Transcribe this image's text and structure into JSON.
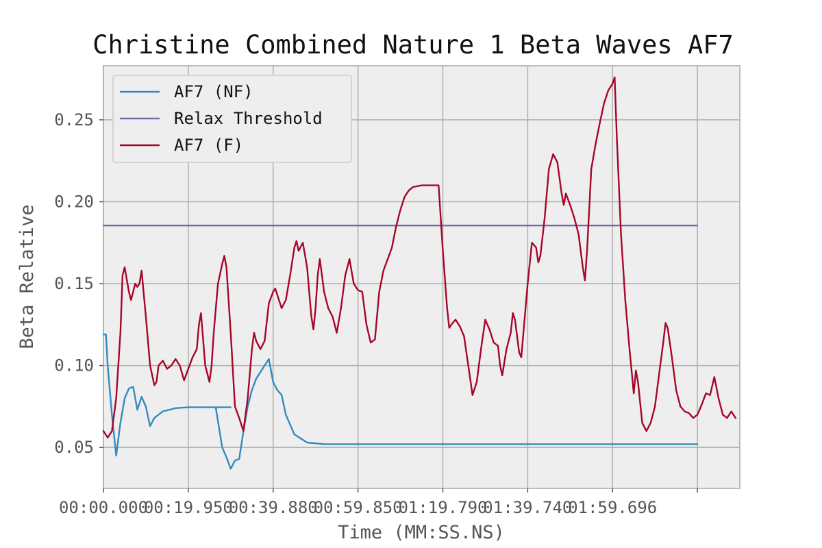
{
  "chart_data": {
    "type": "line",
    "title": "Christine Combined Nature 1 Beta Waves AF7",
    "xlabel": "Time (MM:SS.NS)",
    "ylabel": "Beta Relative",
    "xlim": [
      0,
      150
    ],
    "ylim": [
      0.025,
      0.283
    ],
    "x_ticks": [
      0,
      20,
      40,
      60,
      80,
      100,
      120
    ],
    "x_tick_labels": [
      "00:00.000",
      "00:19.950",
      "00:39.880",
      "00:59.850",
      "01:19.790",
      "01:39.740",
      "01:59.696"
    ],
    "y_ticks": [
      0.05,
      0.1,
      0.15,
      0.2,
      0.25
    ],
    "y_tick_labels": [
      "0.05",
      "0.10",
      "0.15",
      "0.20",
      "0.25"
    ],
    "grid": true,
    "legend_position": "top-left",
    "series": [
      {
        "name": "AF7 (NF)",
        "color": "#348ABD",
        "points": [
          [
            0,
            0.119
          ],
          [
            0.6,
            0.119
          ],
          [
            1,
            0.1
          ],
          [
            2,
            0.07
          ],
          [
            3,
            0.045
          ],
          [
            4,
            0.065
          ],
          [
            5,
            0.08
          ],
          [
            6,
            0.086
          ],
          [
            7,
            0.087
          ],
          [
            8,
            0.073
          ],
          [
            9,
            0.081
          ],
          [
            10,
            0.075
          ],
          [
            11,
            0.063
          ],
          [
            12,
            0.068
          ],
          [
            14,
            0.072
          ],
          [
            17,
            0.074
          ],
          [
            20,
            0.0745
          ],
          [
            30,
            0.0745
          ],
          [
            27,
            0.0745
          ],
          [
            26.5,
            0.074
          ],
          [
            28,
            0.05
          ],
          [
            29,
            0.044
          ],
          [
            30,
            0.037
          ],
          [
            31,
            0.042
          ],
          [
            32,
            0.043
          ],
          [
            33,
            0.06
          ],
          [
            34,
            0.075
          ],
          [
            35,
            0.085
          ],
          [
            36,
            0.092
          ],
          [
            37,
            0.096
          ],
          [
            38,
            0.1
          ],
          [
            39,
            0.104
          ],
          [
            40,
            0.09
          ],
          [
            41,
            0.085
          ],
          [
            42,
            0.082
          ],
          [
            43,
            0.07
          ],
          [
            45,
            0.058
          ],
          [
            48,
            0.053
          ],
          [
            52,
            0.052
          ],
          [
            140,
            0.052
          ]
        ]
      },
      {
        "name": "Relax Threshold",
        "color": "#7A68A6",
        "points": [
          [
            0,
            0.1855
          ],
          [
            140,
            0.1855
          ]
        ]
      },
      {
        "name": "AF7 (F)",
        "color": "#A60628",
        "points": [
          [
            0,
            0.06
          ],
          [
            1,
            0.056
          ],
          [
            2,
            0.06
          ],
          [
            3,
            0.08
          ],
          [
            4,
            0.12
          ],
          [
            4.5,
            0.155
          ],
          [
            5,
            0.16
          ],
          [
            6,
            0.145
          ],
          [
            6.5,
            0.14
          ],
          [
            7,
            0.145
          ],
          [
            7.5,
            0.15
          ],
          [
            8,
            0.148
          ],
          [
            8.5,
            0.15
          ],
          [
            9,
            0.158
          ],
          [
            10,
            0.13
          ],
          [
            11,
            0.1
          ],
          [
            12,
            0.088
          ],
          [
            12.5,
            0.09
          ],
          [
            13,
            0.1
          ],
          [
            14,
            0.103
          ],
          [
            15,
            0.098
          ],
          [
            16,
            0.1
          ],
          [
            17,
            0.104
          ],
          [
            18,
            0.1
          ],
          [
            19,
            0.091
          ],
          [
            20,
            0.098
          ],
          [
            21,
            0.105
          ],
          [
            22,
            0.11
          ],
          [
            22.5,
            0.125
          ],
          [
            23,
            0.132
          ],
          [
            24,
            0.1
          ],
          [
            25,
            0.09
          ],
          [
            25.5,
            0.1
          ],
          [
            26,
            0.12
          ],
          [
            27,
            0.15
          ],
          [
            28,
            0.162
          ],
          [
            28.5,
            0.167
          ],
          [
            29,
            0.16
          ],
          [
            30,
            0.12
          ],
          [
            31,
            0.075
          ],
          [
            32,
            0.068
          ],
          [
            33,
            0.06
          ],
          [
            34,
            0.08
          ],
          [
            35,
            0.11
          ],
          [
            35.5,
            0.12
          ],
          [
            36,
            0.115
          ],
          [
            37,
            0.11
          ],
          [
            38,
            0.115
          ],
          [
            39,
            0.138
          ],
          [
            40,
            0.145
          ],
          [
            40.5,
            0.147
          ],
          [
            41,
            0.143
          ],
          [
            42,
            0.135
          ],
          [
            43,
            0.14
          ],
          [
            44,
            0.155
          ],
          [
            45,
            0.172
          ],
          [
            45.5,
            0.176
          ],
          [
            46,
            0.17
          ],
          [
            47,
            0.175
          ],
          [
            48,
            0.16
          ],
          [
            49,
            0.13
          ],
          [
            49.5,
            0.122
          ],
          [
            50,
            0.135
          ],
          [
            50.5,
            0.155
          ],
          [
            51,
            0.165
          ],
          [
            52,
            0.145
          ],
          [
            53,
            0.135
          ],
          [
            54,
            0.13
          ],
          [
            55,
            0.12
          ],
          [
            56,
            0.135
          ],
          [
            57,
            0.155
          ],
          [
            57.5,
            0.16
          ],
          [
            58,
            0.165
          ],
          [
            59,
            0.15
          ],
          [
            60,
            0.146
          ],
          [
            61,
            0.145
          ],
          [
            62,
            0.125
          ],
          [
            63,
            0.114
          ],
          [
            64,
            0.116
          ],
          [
            65,
            0.145
          ],
          [
            66,
            0.158
          ],
          [
            67,
            0.165
          ],
          [
            68,
            0.172
          ],
          [
            69,
            0.185
          ],
          [
            70,
            0.195
          ],
          [
            71,
            0.203
          ],
          [
            72,
            0.207
          ],
          [
            73,
            0.209
          ],
          [
            75,
            0.21
          ],
          [
            79,
            0.21
          ],
          [
            80,
            0.17
          ],
          [
            81,
            0.135
          ],
          [
            81.5,
            0.123
          ],
          [
            82,
            0.125
          ],
          [
            83,
            0.128
          ],
          [
            84,
            0.124
          ],
          [
            85,
            0.118
          ],
          [
            86,
            0.1
          ],
          [
            87,
            0.082
          ],
          [
            88,
            0.09
          ],
          [
            89,
            0.11
          ],
          [
            90,
            0.128
          ],
          [
            91,
            0.122
          ],
          [
            92,
            0.114
          ],
          [
            93,
            0.112
          ],
          [
            93.5,
            0.1
          ],
          [
            94,
            0.094
          ],
          [
            95,
            0.11
          ],
          [
            96,
            0.12
          ],
          [
            96.5,
            0.132
          ],
          [
            97,
            0.128
          ],
          [
            98,
            0.108
          ],
          [
            98.5,
            0.105
          ],
          [
            99,
            0.12
          ],
          [
            100,
            0.15
          ],
          [
            101,
            0.175
          ],
          [
            102,
            0.172
          ],
          [
            102.5,
            0.163
          ],
          [
            103,
            0.167
          ],
          [
            104,
            0.19
          ],
          [
            105,
            0.22
          ],
          [
            106,
            0.229
          ],
          [
            107,
            0.224
          ],
          [
            108,
            0.205
          ],
          [
            108.5,
            0.198
          ],
          [
            109,
            0.205
          ],
          [
            110,
            0.198
          ],
          [
            111,
            0.19
          ],
          [
            112,
            0.18
          ],
          [
            113,
            0.16
          ],
          [
            113.5,
            0.152
          ],
          [
            114,
            0.17
          ],
          [
            115,
            0.22
          ],
          [
            116,
            0.235
          ],
          [
            117,
            0.248
          ],
          [
            118,
            0.26
          ],
          [
            119,
            0.268
          ],
          [
            120,
            0.272
          ],
          [
            120.5,
            0.276
          ],
          [
            121,
            0.24
          ],
          [
            122,
            0.18
          ],
          [
            123,
            0.14
          ],
          [
            124,
            0.11
          ],
          [
            125,
            0.083
          ],
          [
            125.5,
            0.097
          ],
          [
            126,
            0.09
          ],
          [
            127,
            0.065
          ],
          [
            128,
            0.06
          ],
          [
            129,
            0.065
          ],
          [
            130,
            0.075
          ],
          [
            131,
            0.095
          ],
          [
            132,
            0.115
          ],
          [
            132.5,
            0.126
          ],
          [
            133,
            0.123
          ],
          [
            134,
            0.105
          ],
          [
            135,
            0.085
          ],
          [
            136,
            0.075
          ],
          [
            137,
            0.072
          ],
          [
            138,
            0.071
          ],
          [
            139,
            0.068
          ],
          [
            140,
            0.07
          ],
          [
            141,
            0.076
          ],
          [
            142,
            0.083
          ],
          [
            143,
            0.082
          ],
          [
            144,
            0.093
          ],
          [
            145,
            0.08
          ],
          [
            146,
            0.07
          ],
          [
            147,
            0.068
          ],
          [
            148,
            0.072
          ],
          [
            148.5,
            0.07
          ],
          [
            149,
            0.068
          ]
        ]
      }
    ]
  }
}
